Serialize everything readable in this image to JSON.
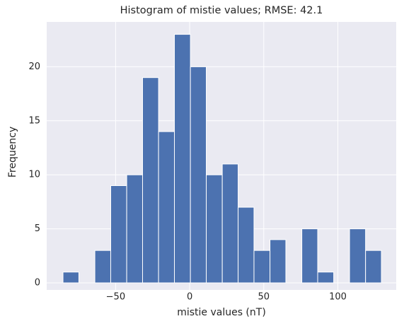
{
  "chart_data": {
    "type": "histogram",
    "title": "Histogram of mistie values; RMSE: 42.1",
    "x_label": "mistie values (nT)",
    "y_label": "Frequency",
    "bins": [
      -85.5,
      -74.8,
      -64.0,
      -53.3,
      -42.5,
      -31.8,
      -21.0,
      -10.3,
      0.5,
      11.2,
      22.0,
      32.7,
      43.4,
      54.2,
      64.9,
      75.7,
      86.4,
      97.2,
      107.9,
      118.7,
      129.4
    ],
    "values": [
      1,
      0,
      3,
      9,
      10,
      19,
      14,
      23,
      20,
      10,
      11,
      7,
      3,
      4,
      0,
      5,
      1,
      0,
      5,
      3
    ],
    "color": "#4c72b0",
    "xlim": [
      -96.5,
      139.4
    ],
    "ylim": [
      0,
      24.15
    ],
    "xticks": [
      {
        "value": -50,
        "label": "−50"
      },
      0,
      50,
      100
    ],
    "yticks": [
      0,
      5,
      10,
      15,
      20
    ],
    "grid": true
  }
}
